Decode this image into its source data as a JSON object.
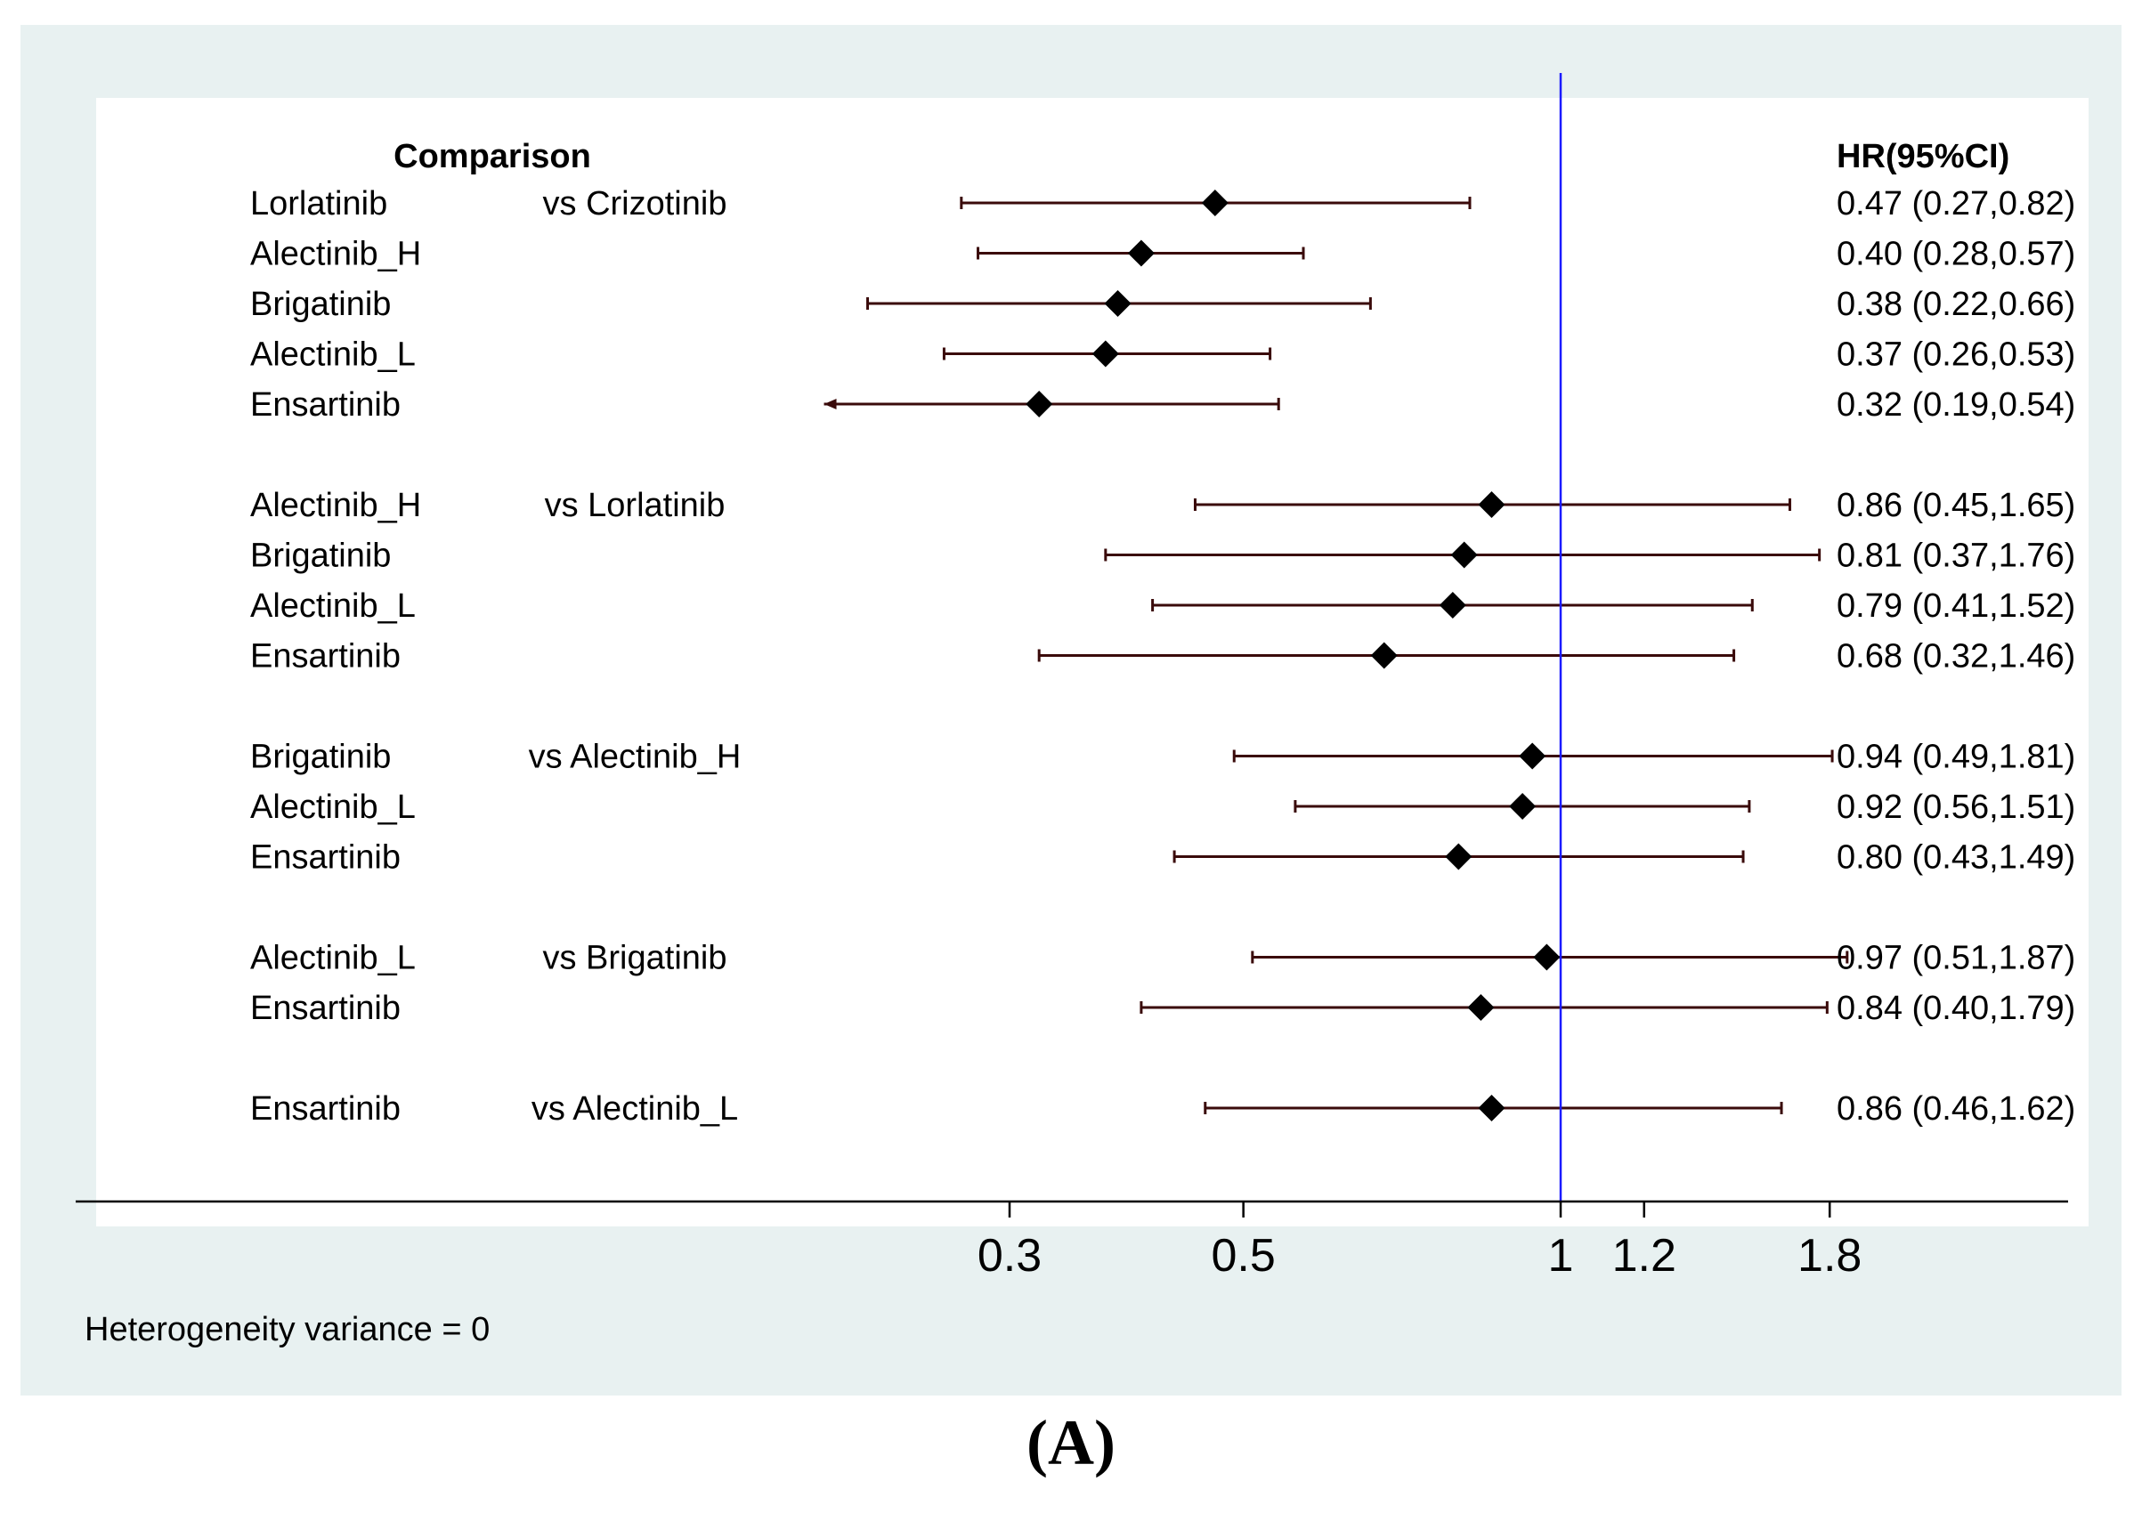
{
  "chart_data": {
    "type": "forest",
    "headers": {
      "comparison": "Comparison",
      "estimate": "HR(95%CI)"
    },
    "x_scale": "log",
    "xlim": [
      0.2,
      2.55
    ],
    "x_ticks": [
      {
        "value": 0.3,
        "label": "0.3"
      },
      {
        "value": 0.5,
        "label": "0.5"
      },
      {
        "value": 1,
        "label": "1"
      },
      {
        "value": 1.2,
        "label": "1.2"
      },
      {
        "value": 1.8,
        "label": "1.8"
      }
    ],
    "reference_line": {
      "value": 1,
      "color": "#1a1aff"
    },
    "colors": {
      "ci": "#3a0a0a",
      "marker": "#000000"
    },
    "groups": [
      {
        "reference": "vs Crizotinib",
        "rows": [
          {
            "treatment": "Lorlatinib",
            "hr": 0.47,
            "lo": 0.27,
            "hi": 0.82,
            "label": "0.47 (0.27,0.82)"
          },
          {
            "treatment": "Alectinib_H",
            "hr": 0.4,
            "lo": 0.28,
            "hi": 0.57,
            "label": "0.40 (0.28,0.57)"
          },
          {
            "treatment": "Brigatinib",
            "hr": 0.38,
            "lo": 0.22,
            "hi": 0.66,
            "label": "0.38 (0.22,0.66)"
          },
          {
            "treatment": "Alectinib_L",
            "hr": 0.37,
            "lo": 0.26,
            "hi": 0.53,
            "label": "0.37 (0.26,0.53)"
          },
          {
            "treatment": "Ensartinib",
            "hr": 0.32,
            "lo": 0.19,
            "hi": 0.54,
            "label": "0.32 (0.19,0.54)"
          }
        ]
      },
      {
        "reference": "vs Lorlatinib",
        "rows": [
          {
            "treatment": "Alectinib_H",
            "hr": 0.86,
            "lo": 0.45,
            "hi": 1.65,
            "label": "0.86 (0.45,1.65)"
          },
          {
            "treatment": "Brigatinib",
            "hr": 0.81,
            "lo": 0.37,
            "hi": 1.76,
            "label": "0.81 (0.37,1.76)"
          },
          {
            "treatment": "Alectinib_L",
            "hr": 0.79,
            "lo": 0.41,
            "hi": 1.52,
            "label": "0.79 (0.41,1.52)"
          },
          {
            "treatment": "Ensartinib",
            "hr": 0.68,
            "lo": 0.32,
            "hi": 1.46,
            "label": "0.68 (0.32,1.46)"
          }
        ]
      },
      {
        "reference": "vs Alectinib_H",
        "rows": [
          {
            "treatment": "Brigatinib",
            "hr": 0.94,
            "lo": 0.49,
            "hi": 1.81,
            "label": "0.94 (0.49,1.81)"
          },
          {
            "treatment": "Alectinib_L",
            "hr": 0.92,
            "lo": 0.56,
            "hi": 1.51,
            "label": "0.92 (0.56,1.51)"
          },
          {
            "treatment": "Ensartinib",
            "hr": 0.8,
            "lo": 0.43,
            "hi": 1.49,
            "label": "0.80 (0.43,1.49)"
          }
        ]
      },
      {
        "reference": "vs Brigatinib",
        "rows": [
          {
            "treatment": "Alectinib_L",
            "hr": 0.97,
            "lo": 0.51,
            "hi": 1.87,
            "label": "0.97 (0.51,1.87)"
          },
          {
            "treatment": "Ensartinib",
            "hr": 0.84,
            "lo": 0.4,
            "hi": 1.79,
            "label": "0.84 (0.40,1.79)"
          }
        ]
      },
      {
        "reference": "vs Alectinib_L",
        "rows": [
          {
            "treatment": "Ensartinib",
            "hr": 0.86,
            "lo": 0.46,
            "hi": 1.62,
            "label": "0.86 (0.46,1.62)"
          }
        ]
      }
    ],
    "note": "Heterogeneity variance = 0"
  },
  "panel_label": "(A)"
}
